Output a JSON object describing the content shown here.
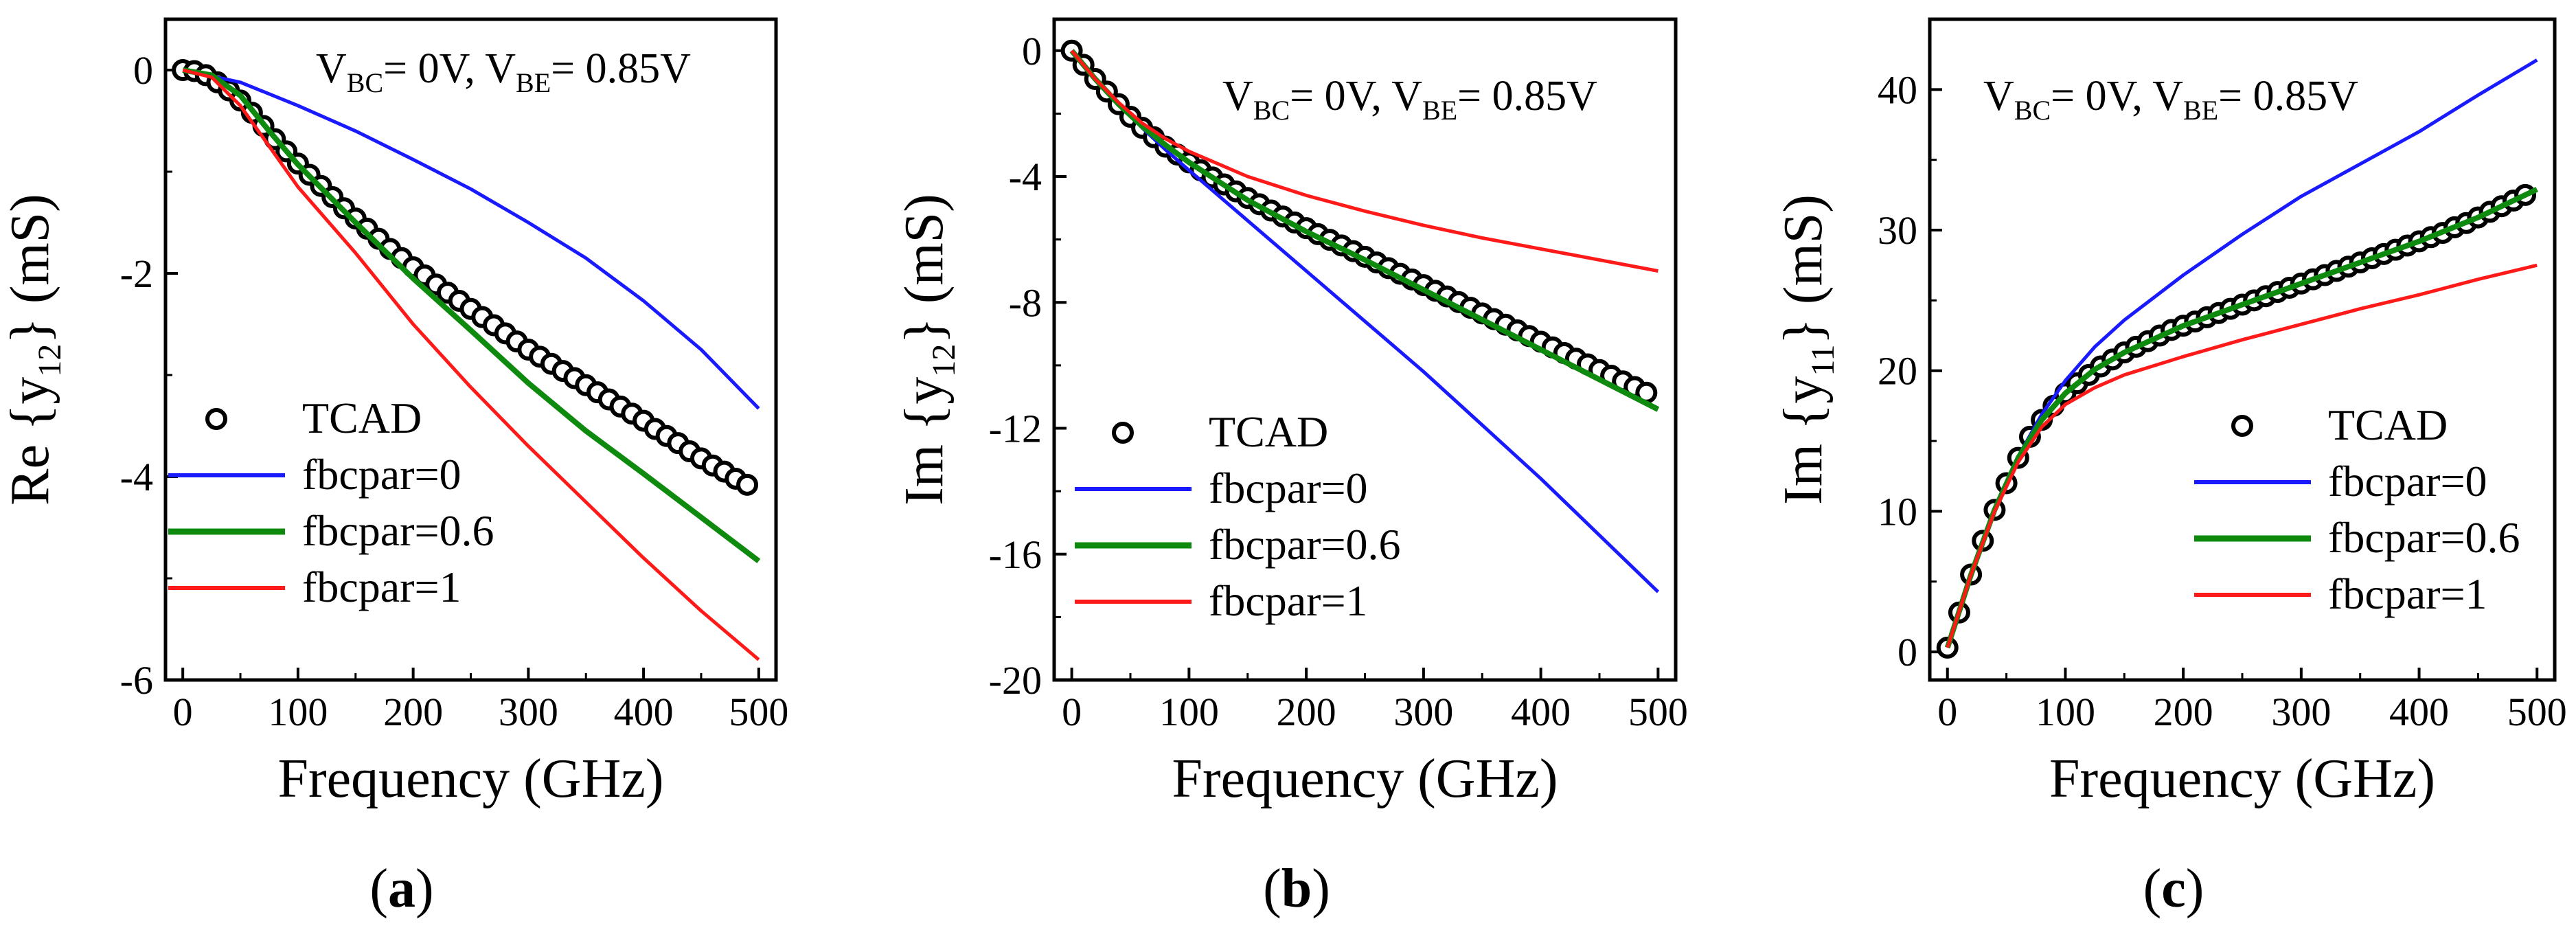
{
  "colors": {
    "fbcpar_0": "#1a1aff",
    "fbcpar_06": "#0e8a0e",
    "fbcpar_1": "#ff1a1a",
    "tcad": "#000000"
  },
  "chart_data": [
    {
      "type": "line",
      "panel_label": "(a)",
      "panel_letter": "a",
      "ylabel_main": "Re {y",
      "ylabel_sub": "12",
      "ylabel_tail": "} (mS)",
      "xlabel": "Frequency (GHz)",
      "annotation": {
        "v1": "V",
        "s1": "BC",
        "m1": "= 0V, V",
        "s2": "BE",
        "m2": "= 0.85V"
      },
      "xlim": [
        -15,
        515
      ],
      "ylim": [
        -6,
        0.5
      ],
      "xticks": [
        0,
        100,
        200,
        300,
        400,
        500
      ],
      "xtick_labels": [
        "0",
        "100",
        "200",
        "300",
        "400",
        "500"
      ],
      "yticks": [
        0,
        -2,
        -4,
        -6
      ],
      "ytick_labels": [
        "0",
        "-2",
        "-4",
        "-6"
      ],
      "legend": [
        "TCAD",
        "fbcpar=0",
        "fbcpar=0.6",
        "fbcpar=1"
      ],
      "x": [
        0,
        10,
        20,
        30,
        40,
        50,
        60,
        70,
        80,
        90,
        100,
        110,
        120,
        130,
        140,
        150,
        160,
        170,
        180,
        190,
        200,
        210,
        220,
        230,
        240,
        250,
        260,
        270,
        280,
        290,
        300,
        310,
        320,
        330,
        340,
        350,
        360,
        370,
        380,
        390,
        400,
        410,
        420,
        430,
        440,
        450,
        460,
        470,
        480,
        490
      ],
      "series": [
        {
          "name": "TCAD",
          "style": "markers",
          "values": [
            0,
            -0.01,
            -0.05,
            -0.12,
            -0.2,
            -0.3,
            -0.42,
            -0.55,
            -0.68,
            -0.8,
            -0.92,
            -1.03,
            -1.14,
            -1.25,
            -1.36,
            -1.46,
            -1.56,
            -1.66,
            -1.76,
            -1.85,
            -1.94,
            -2.02,
            -2.11,
            -2.19,
            -2.27,
            -2.35,
            -2.43,
            -2.51,
            -2.59,
            -2.67,
            -2.75,
            -2.82,
            -2.89,
            -2.96,
            -3.03,
            -3.1,
            -3.17,
            -3.24,
            -3.31,
            -3.38,
            -3.45,
            -3.53,
            -3.6,
            -3.67,
            -3.75,
            -3.82,
            -3.89,
            -3.95,
            -4.02,
            -4.08
          ]
        },
        {
          "name": "fbcpar=0",
          "style": "line",
          "x": [
            0,
            50,
            100,
            150,
            200,
            250,
            300,
            350,
            400,
            450,
            500
          ],
          "values": [
            0,
            -0.12,
            -0.35,
            -0.6,
            -0.88,
            -1.17,
            -1.5,
            -1.85,
            -2.27,
            -2.75,
            -3.33
          ]
        },
        {
          "name": "fbcpar=0.6",
          "style": "line",
          "x": [
            0,
            25,
            50,
            75,
            100,
            150,
            200,
            250,
            300,
            350,
            400,
            450,
            500
          ],
          "values": [
            0,
            -0.05,
            -0.25,
            -0.6,
            -0.93,
            -1.5,
            -2.05,
            -2.56,
            -3.08,
            -3.55,
            -3.97,
            -4.4,
            -4.83
          ]
        },
        {
          "name": "fbcpar=1",
          "style": "line",
          "x": [
            0,
            25,
            50,
            75,
            100,
            150,
            200,
            250,
            300,
            350,
            400,
            450,
            500
          ],
          "values": [
            0,
            -0.07,
            -0.35,
            -0.75,
            -1.15,
            -1.8,
            -2.5,
            -3.12,
            -3.7,
            -4.25,
            -4.8,
            -5.32,
            -5.8
          ]
        }
      ]
    },
    {
      "type": "line",
      "panel_label": "(b)",
      "panel_letter": "b",
      "ylabel_main": "Im {y",
      "ylabel_sub": "12",
      "ylabel_tail": "} (mS)",
      "xlabel": "Frequency (GHz)",
      "annotation": {
        "v1": "V",
        "s1": "BC",
        "m1": "= 0V, V",
        "s2": "BE",
        "m2": "= 0.85V"
      },
      "xlim": [
        -15,
        515
      ],
      "ylim": [
        -20,
        1
      ],
      "xticks": [
        0,
        100,
        200,
        300,
        400,
        500
      ],
      "xtick_labels": [
        "0",
        "100",
        "200",
        "300",
        "400",
        "500"
      ],
      "yticks": [
        0,
        -4,
        -8,
        -12,
        -16,
        -20
      ],
      "ytick_labels": [
        "0",
        "-4",
        "-8",
        "-12",
        "-16",
        "-20"
      ],
      "legend": [
        "TCAD",
        "fbcpar=0",
        "fbcpar=0.6",
        "fbcpar=1"
      ],
      "x": [
        0,
        10,
        20,
        30,
        40,
        50,
        60,
        70,
        80,
        90,
        100,
        110,
        120,
        130,
        140,
        150,
        160,
        170,
        180,
        190,
        200,
        210,
        220,
        230,
        240,
        250,
        260,
        270,
        280,
        290,
        300,
        310,
        320,
        330,
        340,
        350,
        360,
        370,
        380,
        390,
        400,
        410,
        420,
        430,
        440,
        450,
        460,
        470,
        480,
        490
      ],
      "series": [
        {
          "name": "TCAD",
          "style": "markers",
          "values": [
            0,
            -0.45,
            -0.9,
            -1.3,
            -1.7,
            -2.1,
            -2.45,
            -2.75,
            -3.05,
            -3.3,
            -3.55,
            -3.8,
            -4.03,
            -4.25,
            -4.47,
            -4.68,
            -4.88,
            -5.08,
            -5.27,
            -5.46,
            -5.64,
            -5.83,
            -6.01,
            -6.19,
            -6.37,
            -6.55,
            -6.73,
            -6.91,
            -7.09,
            -7.27,
            -7.45,
            -7.63,
            -7.81,
            -7.99,
            -8.17,
            -8.35,
            -8.53,
            -8.71,
            -8.89,
            -9.07,
            -9.25,
            -9.43,
            -9.61,
            -9.79,
            -9.97,
            -10.15,
            -10.33,
            -10.51,
            -10.69,
            -10.87
          ]
        },
        {
          "name": "fbcpar=0",
          "style": "line",
          "x": [
            0,
            20,
            40,
            60,
            80,
            100,
            150,
            200,
            250,
            300,
            350,
            400,
            450,
            500
          ],
          "values": [
            0,
            -0.9,
            -1.7,
            -2.45,
            -3.15,
            -3.8,
            -5.4,
            -7.0,
            -8.6,
            -10.2,
            -11.9,
            -13.6,
            -15.4,
            -17.2
          ]
        },
        {
          "name": "fbcpar=0.6",
          "style": "line",
          "x": [
            0,
            20,
            40,
            60,
            80,
            100,
            150,
            200,
            250,
            300,
            350,
            400,
            450,
            500
          ],
          "values": [
            0,
            -0.9,
            -1.7,
            -2.4,
            -3.0,
            -3.55,
            -4.75,
            -5.75,
            -6.65,
            -7.6,
            -8.55,
            -9.5,
            -10.45,
            -11.4
          ]
        },
        {
          "name": "fbcpar=1",
          "style": "line",
          "x": [
            0,
            20,
            40,
            60,
            80,
            100,
            150,
            200,
            250,
            300,
            350,
            400,
            450,
            500
          ],
          "values": [
            0,
            -0.9,
            -1.65,
            -2.3,
            -2.8,
            -3.2,
            -4.0,
            -4.6,
            -5.1,
            -5.55,
            -5.95,
            -6.3,
            -6.65,
            -7.0
          ]
        }
      ]
    },
    {
      "type": "line",
      "panel_label": "(c)",
      "panel_letter": "c",
      "ylabel_main": "Im {y",
      "ylabel_sub": "11",
      "ylabel_tail": "} (mS)",
      "xlabel": "Frequency (GHz)",
      "annotation": {
        "v1": "V",
        "s1": "BC",
        "m1": "= 0V, V",
        "s2": "BE",
        "m2": "= 0.85V"
      },
      "xlim": [
        -15,
        515
      ],
      "ylim": [
        -2,
        45
      ],
      "xticks": [
        0,
        100,
        200,
        300,
        400,
        500
      ],
      "xtick_labels": [
        "0",
        "100",
        "200",
        "300",
        "400",
        "500"
      ],
      "yticks": [
        0,
        10,
        20,
        30,
        40
      ],
      "ytick_labels": [
        "0",
        "10",
        "20",
        "30",
        "40"
      ],
      "legend": [
        "TCAD",
        "fbcpar=0",
        "fbcpar=0.6",
        "fbcpar=1"
      ],
      "x": [
        0,
        10,
        20,
        30,
        40,
        50,
        60,
        70,
        80,
        90,
        100,
        110,
        120,
        130,
        140,
        150,
        160,
        170,
        180,
        190,
        200,
        210,
        220,
        230,
        240,
        250,
        260,
        270,
        280,
        290,
        300,
        310,
        320,
        330,
        340,
        350,
        360,
        370,
        380,
        390,
        400,
        410,
        420,
        430,
        440,
        450,
        460,
        470,
        480,
        490
      ],
      "series": [
        {
          "name": "TCAD",
          "style": "markers",
          "values": [
            0.3,
            2.8,
            5.5,
            7.9,
            10.1,
            12.0,
            13.8,
            15.3,
            16.5,
            17.5,
            18.4,
            19.1,
            19.7,
            20.3,
            20.8,
            21.3,
            21.7,
            22.1,
            22.5,
            22.9,
            23.2,
            23.5,
            23.8,
            24.1,
            24.4,
            24.7,
            25.0,
            25.3,
            25.6,
            25.9,
            26.2,
            26.5,
            26.8,
            27.1,
            27.4,
            27.7,
            28.0,
            28.3,
            28.6,
            28.9,
            29.2,
            29.5,
            29.8,
            30.2,
            30.5,
            30.9,
            31.3,
            31.7,
            32.1,
            32.5
          ]
        },
        {
          "name": "fbcpar=0",
          "style": "line",
          "x": [
            0,
            20,
            40,
            60,
            80,
            100,
            125,
            150,
            200,
            250,
            300,
            350,
            400,
            450,
            500
          ],
          "values": [
            0.3,
            5.5,
            10.1,
            13.9,
            16.9,
            19.3,
            21.7,
            23.6,
            26.8,
            29.7,
            32.4,
            34.7,
            37.0,
            39.6,
            42.1
          ]
        },
        {
          "name": "fbcpar=0.6",
          "style": "line",
          "x": [
            0,
            20,
            40,
            60,
            80,
            100,
            125,
            150,
            200,
            250,
            300,
            350,
            400,
            450,
            500
          ],
          "values": [
            0.3,
            5.5,
            10.1,
            13.8,
            16.5,
            18.4,
            20.1,
            21.3,
            23.2,
            24.7,
            26.2,
            27.7,
            29.2,
            30.9,
            32.9
          ]
        },
        {
          "name": "fbcpar=1",
          "style": "line",
          "x": [
            0,
            20,
            40,
            60,
            80,
            100,
            125,
            150,
            200,
            250,
            300,
            350,
            400,
            450,
            500
          ],
          "values": [
            0.3,
            5.5,
            10.0,
            13.5,
            16.0,
            17.6,
            18.8,
            19.7,
            21.0,
            22.2,
            23.3,
            24.4,
            25.4,
            26.5,
            27.5
          ]
        }
      ]
    }
  ]
}
